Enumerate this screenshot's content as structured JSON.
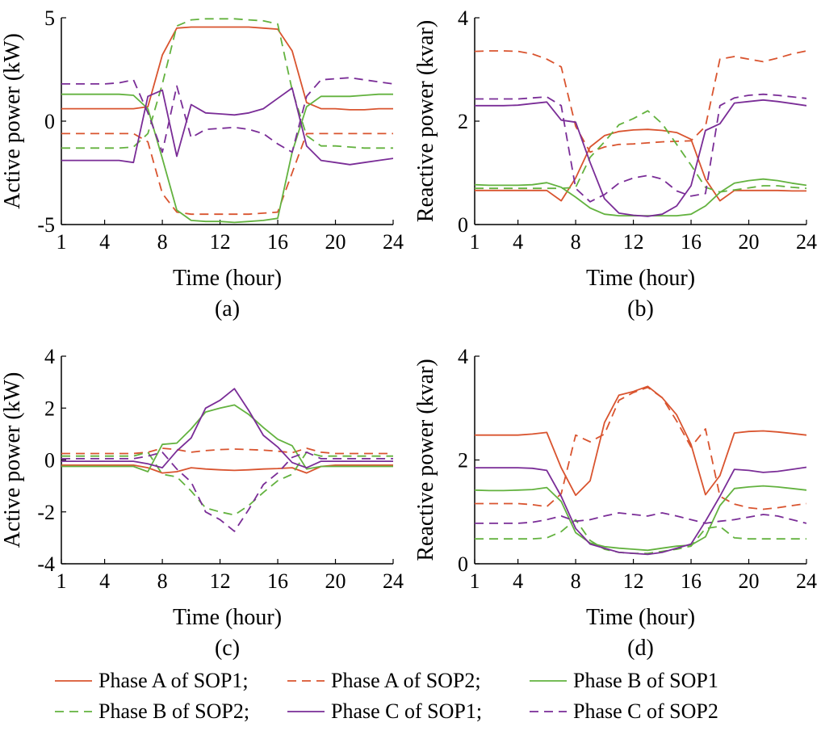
{
  "colors": {
    "phase_a": "#d9542f",
    "phase_b": "#63b23f",
    "phase_c": "#7a2d97"
  },
  "legend": {
    "entries": [
      {
        "label": "Phase A of SOP1;",
        "color": "#d9542f",
        "dash": "solid"
      },
      {
        "label": "Phase A of SOP2;",
        "color": "#d9542f",
        "dash": "dashed"
      },
      {
        "label": "Phase B of SOP1",
        "color": "#63b23f",
        "dash": "solid"
      },
      {
        "label": "Phase B of SOP2;",
        "color": "#63b23f",
        "dash": "dashed"
      },
      {
        "label": "Phase C of SOP1;",
        "color": "#7a2d97",
        "dash": "solid"
      },
      {
        "label": "Phase C of SOP2",
        "color": "#7a2d97",
        "dash": "dashed"
      }
    ]
  },
  "chart_data": [
    {
      "type": "line",
      "panel_label": "(a)",
      "xlabel": "Time (hour)",
      "ylabel": "Active power (kW)",
      "xlim": [
        1,
        24
      ],
      "ylim": [
        -5,
        5
      ],
      "xticks": [
        1,
        4,
        8,
        12,
        16,
        20,
        24
      ],
      "yticks": [
        -5,
        0,
        5
      ],
      "x": [
        1,
        2,
        3,
        4,
        5,
        6,
        7,
        8,
        9,
        10,
        11,
        12,
        13,
        14,
        15,
        16,
        17,
        18,
        19,
        20,
        21,
        22,
        23,
        24
      ],
      "series": [
        {
          "name": "Phase A of SOP1",
          "color": "#d9542f",
          "dash": "solid",
          "values": [
            0.6,
            0.6,
            0.6,
            0.6,
            0.6,
            0.6,
            0.7,
            3.2,
            4.5,
            4.55,
            4.55,
            4.55,
            4.55,
            4.55,
            4.5,
            4.45,
            3.4,
            0.9,
            0.6,
            0.6,
            0.55,
            0.55,
            0.6,
            0.6
          ]
        },
        {
          "name": "Phase A of SOP2",
          "color": "#d9542f",
          "dash": "dashed",
          "values": [
            -0.6,
            -0.6,
            -0.6,
            -0.6,
            -0.6,
            -0.6,
            -1.0,
            -3.5,
            -4.4,
            -4.5,
            -4.5,
            -4.5,
            -4.5,
            -4.5,
            -4.45,
            -4.4,
            -2.5,
            -0.6,
            -0.6,
            -0.6,
            -0.6,
            -0.6,
            -0.6,
            -0.6
          ]
        },
        {
          "name": "Phase B of SOP1",
          "color": "#63b23f",
          "dash": "solid",
          "values": [
            1.3,
            1.3,
            1.3,
            1.3,
            1.3,
            1.25,
            0.6,
            -1.8,
            -4.3,
            -4.8,
            -4.85,
            -4.85,
            -4.9,
            -4.85,
            -4.8,
            -4.7,
            -1.5,
            0.7,
            1.2,
            1.2,
            1.2,
            1.25,
            1.3,
            1.3
          ]
        },
        {
          "name": "Phase B of SOP2",
          "color": "#63b23f",
          "dash": "dashed",
          "values": [
            -1.3,
            -1.3,
            -1.3,
            -1.3,
            -1.3,
            -1.25,
            -0.6,
            1.8,
            4.6,
            4.9,
            4.95,
            4.95,
            4.95,
            4.9,
            4.85,
            4.7,
            1.5,
            -0.7,
            -1.2,
            -1.2,
            -1.25,
            -1.3,
            -1.3,
            -1.3
          ]
        },
        {
          "name": "Phase C of SOP1",
          "color": "#7a2d97",
          "dash": "solid",
          "values": [
            -1.9,
            -1.9,
            -1.9,
            -1.9,
            -1.9,
            -2.0,
            1.2,
            1.5,
            -1.7,
            0.8,
            0.4,
            0.35,
            0.3,
            0.4,
            0.6,
            1.1,
            1.6,
            -1.2,
            -1.9,
            -2.0,
            -2.1,
            -2.0,
            -1.9,
            -1.8
          ]
        },
        {
          "name": "Phase C of SOP2",
          "color": "#7a2d97",
          "dash": "dashed",
          "values": [
            1.8,
            1.8,
            1.8,
            1.8,
            1.85,
            2.0,
            0.4,
            -1.5,
            1.7,
            -0.8,
            -0.4,
            -0.35,
            -0.3,
            -0.4,
            -0.6,
            -1.1,
            -1.5,
            1.2,
            2.0,
            2.05,
            2.1,
            2.0,
            1.9,
            1.8
          ]
        }
      ]
    },
    {
      "type": "line",
      "panel_label": "(b)",
      "xlabel": "Time (hour)",
      "ylabel": "Reactive power (kvar)",
      "xlim": [
        1,
        24
      ],
      "ylim": [
        0,
        4
      ],
      "xticks": [
        1,
        4,
        8,
        12,
        16,
        20,
        24
      ],
      "yticks": [
        0,
        2,
        4
      ],
      "x": [
        1,
        2,
        3,
        4,
        5,
        6,
        7,
        8,
        9,
        10,
        11,
        12,
        13,
        14,
        15,
        16,
        17,
        18,
        19,
        20,
        21,
        22,
        23,
        24
      ],
      "series": [
        {
          "name": "Phase A of SOP1",
          "color": "#d9542f",
          "dash": "solid",
          "values": [
            0.66,
            0.66,
            0.66,
            0.66,
            0.66,
            0.66,
            0.46,
            0.9,
            1.5,
            1.72,
            1.8,
            1.83,
            1.84,
            1.82,
            1.78,
            1.65,
            0.88,
            0.46,
            0.66,
            0.66,
            0.66,
            0.66,
            0.65,
            0.65
          ]
        },
        {
          "name": "Phase A of SOP2",
          "color": "#d9542f",
          "dash": "dashed",
          "values": [
            3.35,
            3.36,
            3.36,
            3.35,
            3.3,
            3.2,
            3.05,
            1.9,
            1.4,
            1.5,
            1.55,
            1.56,
            1.58,
            1.6,
            1.61,
            1.62,
            1.9,
            3.2,
            3.25,
            3.2,
            3.15,
            3.22,
            3.3,
            3.36
          ]
        },
        {
          "name": "Phase B of SOP1",
          "color": "#63b23f",
          "dash": "solid",
          "values": [
            0.77,
            0.76,
            0.76,
            0.76,
            0.77,
            0.81,
            0.72,
            0.53,
            0.32,
            0.2,
            0.17,
            0.17,
            0.17,
            0.17,
            0.17,
            0.2,
            0.36,
            0.62,
            0.8,
            0.85,
            0.88,
            0.85,
            0.8,
            0.76
          ]
        },
        {
          "name": "Phase B of SOP2",
          "color": "#63b23f",
          "dash": "dashed",
          "values": [
            0.7,
            0.7,
            0.7,
            0.7,
            0.7,
            0.7,
            0.7,
            0.72,
            1.3,
            1.6,
            1.93,
            2.05,
            2.2,
            1.95,
            1.55,
            1.15,
            0.72,
            0.63,
            0.67,
            0.71,
            0.75,
            0.75,
            0.72,
            0.7
          ]
        },
        {
          "name": "Phase C of SOP1",
          "color": "#7a2d97",
          "dash": "solid",
          "values": [
            2.3,
            2.3,
            2.3,
            2.31,
            2.34,
            2.37,
            2.02,
            1.98,
            1.2,
            0.5,
            0.22,
            0.18,
            0.16,
            0.2,
            0.36,
            0.75,
            1.82,
            1.95,
            2.35,
            2.38,
            2.41,
            2.38,
            2.34,
            2.3
          ]
        },
        {
          "name": "Phase C of SOP2",
          "color": "#7a2d97",
          "dash": "dashed",
          "values": [
            2.43,
            2.43,
            2.43,
            2.43,
            2.45,
            2.47,
            2.3,
            0.7,
            0.44,
            0.58,
            0.8,
            0.9,
            0.95,
            0.88,
            0.65,
            0.55,
            0.6,
            2.3,
            2.45,
            2.5,
            2.52,
            2.5,
            2.47,
            2.44
          ]
        }
      ]
    },
    {
      "type": "line",
      "panel_label": "(c)",
      "xlabel": "Time (hour)",
      "ylabel": "Active power (kW)",
      "xlim": [
        1,
        24
      ],
      "ylim": [
        -4,
        4
      ],
      "xticks": [
        1,
        4,
        8,
        12,
        16,
        20,
        24
      ],
      "yticks": [
        -4,
        -2,
        0,
        2,
        4
      ],
      "x": [
        1,
        2,
        3,
        4,
        5,
        6,
        7,
        8,
        9,
        10,
        11,
        12,
        13,
        14,
        15,
        16,
        17,
        18,
        19,
        20,
        21,
        22,
        23,
        24
      ],
      "series": [
        {
          "name": "Phase A of SOP1",
          "color": "#d9542f",
          "dash": "solid",
          "values": [
            -0.2,
            -0.2,
            -0.2,
            -0.2,
            -0.2,
            -0.2,
            -0.3,
            -0.5,
            -0.45,
            -0.3,
            -0.35,
            -0.38,
            -0.4,
            -0.38,
            -0.35,
            -0.33,
            -0.3,
            -0.5,
            -0.25,
            -0.2,
            -0.2,
            -0.2,
            -0.2,
            -0.2
          ]
        },
        {
          "name": "Phase A of SOP2",
          "color": "#d9542f",
          "dash": "dashed",
          "values": [
            0.25,
            0.25,
            0.25,
            0.25,
            0.25,
            0.25,
            0.3,
            0.45,
            0.4,
            0.3,
            0.36,
            0.4,
            0.42,
            0.4,
            0.38,
            0.34,
            0.28,
            0.45,
            0.3,
            0.25,
            0.25,
            0.25,
            0.25,
            0.25
          ]
        },
        {
          "name": "Phase B of SOP1",
          "color": "#63b23f",
          "dash": "solid",
          "values": [
            -0.25,
            -0.25,
            -0.25,
            -0.25,
            -0.25,
            -0.25,
            -0.45,
            0.6,
            0.65,
            1.2,
            1.85,
            2.0,
            2.12,
            1.75,
            1.25,
            0.8,
            0.55,
            -0.35,
            -0.25,
            -0.25,
            -0.25,
            -0.25,
            -0.25,
            -0.25
          ]
        },
        {
          "name": "Phase B of SOP2",
          "color": "#63b23f",
          "dash": "dashed",
          "values": [
            0.15,
            0.15,
            0.15,
            0.15,
            0.15,
            0.15,
            0.3,
            -0.55,
            -0.65,
            -1.2,
            -1.85,
            -2.0,
            -2.12,
            -1.75,
            -1.25,
            -0.8,
            -0.55,
            0.3,
            0.15,
            0.15,
            0.15,
            0.15,
            0.15,
            0.15
          ]
        },
        {
          "name": "Phase C of SOP1",
          "color": "#7a2d97",
          "dash": "solid",
          "values": [
            -0.05,
            -0.05,
            -0.05,
            -0.05,
            -0.05,
            -0.05,
            -0.15,
            -0.3,
            0.35,
            0.85,
            2.0,
            2.3,
            2.75,
            1.9,
            0.95,
            0.5,
            -0.1,
            -0.3,
            -0.05,
            -0.05,
            -0.05,
            -0.05,
            -0.05,
            -0.05
          ]
        },
        {
          "name": "Phase C of SOP2",
          "color": "#7a2d97",
          "dash": "dashed",
          "values": [
            0.05,
            0.05,
            0.05,
            0.05,
            0.05,
            0.05,
            0.15,
            0.3,
            -0.35,
            -0.85,
            -2.0,
            -2.3,
            -2.75,
            -1.9,
            -0.95,
            -0.5,
            0.1,
            0.3,
            0.05,
            0.05,
            0.05,
            0.05,
            0.05,
            0.05
          ]
        }
      ]
    },
    {
      "type": "line",
      "panel_label": "(d)",
      "xlabel": "Time (hour)",
      "ylabel": "Reactive power (kvar)",
      "xlim": [
        1,
        24
      ],
      "ylim": [
        0,
        4
      ],
      "xticks": [
        1,
        4,
        8,
        12,
        16,
        20,
        24
      ],
      "yticks": [
        0,
        2,
        4
      ],
      "x": [
        1,
        2,
        3,
        4,
        5,
        6,
        7,
        8,
        9,
        10,
        11,
        12,
        13,
        14,
        15,
        16,
        17,
        18,
        19,
        20,
        21,
        22,
        23,
        24
      ],
      "series": [
        {
          "name": "Phase A of SOP1",
          "color": "#d9542f",
          "dash": "solid",
          "values": [
            2.48,
            2.48,
            2.48,
            2.48,
            2.5,
            2.53,
            1.85,
            1.32,
            1.6,
            2.72,
            3.25,
            3.32,
            3.42,
            3.2,
            2.87,
            2.3,
            1.33,
            1.7,
            2.52,
            2.55,
            2.56,
            2.54,
            2.51,
            2.48
          ]
        },
        {
          "name": "Phase A of SOP2",
          "color": "#d9542f",
          "dash": "dashed",
          "values": [
            1.16,
            1.16,
            1.16,
            1.16,
            1.14,
            1.1,
            1.35,
            2.48,
            2.35,
            2.5,
            3.15,
            3.3,
            3.4,
            3.2,
            2.75,
            2.25,
            2.6,
            1.3,
            1.15,
            1.08,
            1.05,
            1.08,
            1.12,
            1.16
          ]
        },
        {
          "name": "Phase B of SOP1",
          "color": "#63b23f",
          "dash": "solid",
          "values": [
            1.42,
            1.41,
            1.41,
            1.42,
            1.43,
            1.47,
            1.2,
            0.6,
            0.4,
            0.33,
            0.3,
            0.28,
            0.26,
            0.3,
            0.34,
            0.36,
            0.52,
            1.12,
            1.45,
            1.48,
            1.5,
            1.48,
            1.45,
            1.42
          ]
        },
        {
          "name": "Phase B of SOP2",
          "color": "#63b23f",
          "dash": "dashed",
          "values": [
            0.48,
            0.48,
            0.48,
            0.48,
            0.48,
            0.5,
            0.62,
            0.85,
            0.45,
            0.28,
            0.22,
            0.2,
            0.2,
            0.24,
            0.28,
            0.34,
            0.68,
            0.72,
            0.5,
            0.48,
            0.48,
            0.48,
            0.48,
            0.48
          ]
        },
        {
          "name": "Phase C of SOP1",
          "color": "#7a2d97",
          "dash": "solid",
          "values": [
            1.85,
            1.85,
            1.85,
            1.85,
            1.84,
            1.8,
            1.3,
            0.68,
            0.38,
            0.3,
            0.22,
            0.2,
            0.18,
            0.22,
            0.3,
            0.38,
            0.82,
            1.3,
            1.82,
            1.8,
            1.76,
            1.78,
            1.82,
            1.86
          ]
        },
        {
          "name": "Phase C of SOP2",
          "color": "#7a2d97",
          "dash": "dashed",
          "values": [
            0.78,
            0.78,
            0.78,
            0.78,
            0.8,
            0.85,
            0.92,
            0.82,
            0.85,
            0.92,
            0.98,
            0.95,
            0.92,
            0.98,
            0.92,
            0.85,
            0.78,
            0.82,
            0.85,
            0.9,
            0.95,
            0.92,
            0.85,
            0.78
          ]
        }
      ]
    }
  ]
}
